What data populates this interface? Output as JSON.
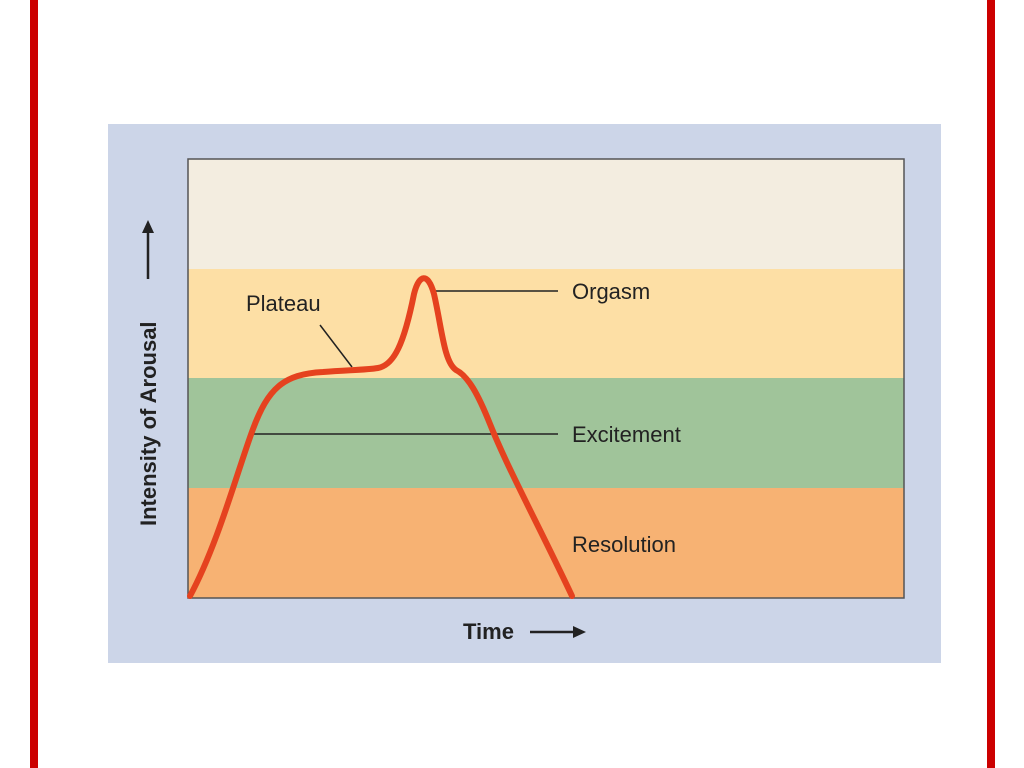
{
  "diagram": {
    "x_axis_label": "Time",
    "y_axis_label": "Intensity of Arousal",
    "band_labels": {
      "orgasm": "Orgasm",
      "plateau": "Plateau",
      "excitement": "Excitement",
      "resolution": "Resolution"
    },
    "colors": {
      "slide_border": "#cc0000",
      "panel_background": "#ccd5e8",
      "band_top": "#f3ede0",
      "band_orgasm_plateau": "#fddfa5",
      "band_excitement": "#a0c49a",
      "band_resolution": "#f7b273",
      "curve": "#e5421f"
    }
  }
}
